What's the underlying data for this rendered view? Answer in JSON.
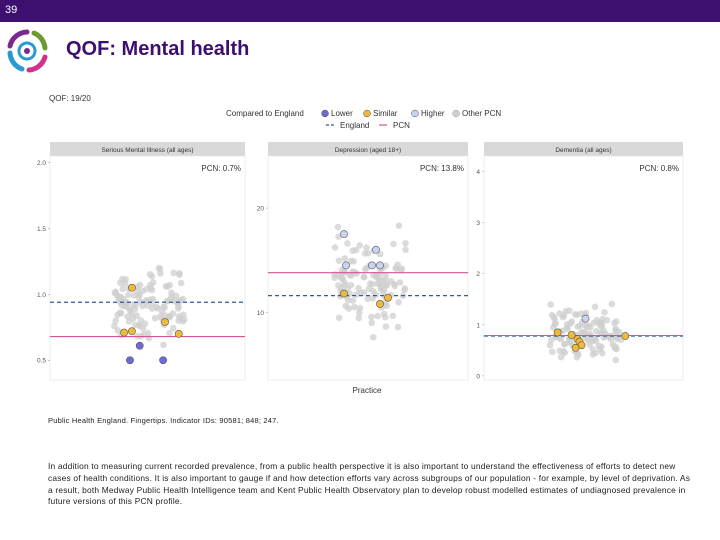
{
  "slide_number": "39",
  "title": "QOF: Mental health",
  "source_note": "Public Health England. Fingertips. Indicator IDs: 90581; 848; 247.",
  "body_text": "In addition to measuring current recorded prevalence, from a public health perspective it is also important to understand the effectiveness of efforts to detect new cases of health conditions. It is also important to gauge if and how detection efforts vary across subgroups of our population - for example, by level of deprivation. As a result, both Medway Public Health Intelligence team and Kent Public Health Observatory plan to develop robust modelled estimates of undiagnosed prevalence in future versions of this PCN profile.",
  "colors": {
    "brand": "#3d0f6e",
    "lower": "#6b6bd6",
    "similar": "#f0b93a",
    "higher": "#c9d3f2",
    "other": "#cfcfcf",
    "england": "#2f5b9e",
    "pcn": "#d4559a"
  },
  "chart_data": {
    "type": "scatter",
    "title": "QOF: 19/20",
    "xlabel": "Practice",
    "legend": {
      "compared_label": "Compared to England",
      "lower": "Lower",
      "similar": "Similar",
      "higher": "Higher",
      "other": "Other PCN",
      "england": "England",
      "pcn": "PCN"
    },
    "facets": [
      {
        "name": "Serious Mental Illness (all ages)",
        "pcn_label": "PCN: 0.7%",
        "ylim": [
          0.35,
          2.05
        ],
        "ticks": [
          0.5,
          1.0,
          1.5,
          2.0
        ],
        "tick_labels": [
          "0.5",
          "1.0",
          "1.5",
          "2.0"
        ],
        "england": 0.94,
        "pcn": 0.68,
        "highlighted": [
          {
            "x": 0.42,
            "y": 1.05,
            "status": "similar"
          },
          {
            "x": 0.42,
            "y": 0.72,
            "status": "similar"
          },
          {
            "x": 0.38,
            "y": 0.71,
            "status": "similar"
          },
          {
            "x": 0.59,
            "y": 0.79,
            "status": "similar"
          },
          {
            "x": 0.66,
            "y": 0.7,
            "status": "similar"
          },
          {
            "x": 0.46,
            "y": 0.61,
            "status": "lower"
          },
          {
            "x": 0.41,
            "y": 0.5,
            "status": "lower"
          },
          {
            "x": 0.58,
            "y": 0.5,
            "status": "lower"
          }
        ]
      },
      {
        "name": "Depression (aged 18+)",
        "pcn_label": "PCN: 13.8%",
        "ylim": [
          3.5,
          25
        ],
        "ticks": [
          10,
          20
        ],
        "tick_labels": [
          "10",
          "20"
        ],
        "england": 11.6,
        "pcn": 13.8,
        "highlighted": [
          {
            "x": 0.38,
            "y": 17.5,
            "status": "higher"
          },
          {
            "x": 0.39,
            "y": 14.5,
            "status": "higher"
          },
          {
            "x": 0.52,
            "y": 14.5,
            "status": "higher"
          },
          {
            "x": 0.56,
            "y": 14.5,
            "status": "higher"
          },
          {
            "x": 0.54,
            "y": 16.0,
            "status": "higher"
          },
          {
            "x": 0.38,
            "y": 11.8,
            "status": "similar"
          },
          {
            "x": 0.6,
            "y": 11.4,
            "status": "similar"
          },
          {
            "x": 0.56,
            "y": 10.8,
            "status": "similar"
          }
        ]
      },
      {
        "name": "Dementia (all ages)",
        "pcn_label": "PCN: 0.8%",
        "ylim": [
          -0.08,
          4.3
        ],
        "ticks": [
          0,
          1,
          2,
          3,
          4
        ],
        "tick_labels": [
          "0",
          "1",
          "2",
          "3",
          "4"
        ],
        "england": 0.78,
        "pcn": 0.79,
        "highlighted": [
          {
            "x": 0.51,
            "y": 1.12,
            "status": "higher"
          },
          {
            "x": 0.37,
            "y": 0.85,
            "status": "similar"
          },
          {
            "x": 0.44,
            "y": 0.8,
            "status": "similar"
          },
          {
            "x": 0.47,
            "y": 0.72,
            "status": "similar"
          },
          {
            "x": 0.48,
            "y": 0.67,
            "status": "similar"
          },
          {
            "x": 0.49,
            "y": 0.6,
            "status": "similar"
          },
          {
            "x": 0.46,
            "y": 0.55,
            "status": "similar"
          },
          {
            "x": 0.71,
            "y": 0.78,
            "status": "similar"
          }
        ]
      }
    ]
  }
}
